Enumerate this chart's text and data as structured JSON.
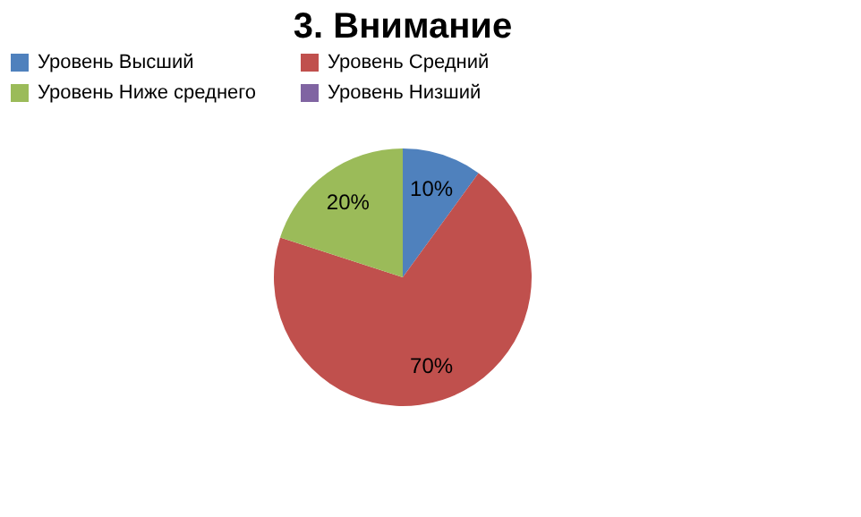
{
  "chart_data": {
    "type": "pie",
    "title": "3. Внимание",
    "categories": [
      "Уровень  Высший",
      "Уровень  Средний",
      "Уровень  Ниже среднего",
      "Уровень  Низший"
    ],
    "values": [
      10,
      70,
      20,
      0
    ],
    "colors": [
      "#4f81bd",
      "#c0504d",
      "#9bbb59",
      "#8064a2"
    ],
    "value_labels": [
      "10%",
      "70%",
      "20%",
      null
    ],
    "legend": "top"
  }
}
